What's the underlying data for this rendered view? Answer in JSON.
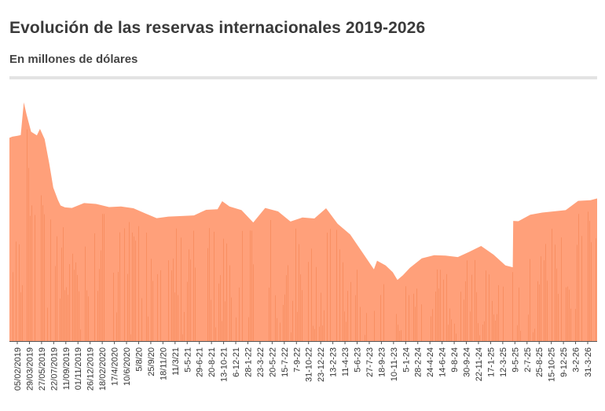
{
  "header": {
    "title": "Evolución de las reservas internacionales 2019-2026",
    "subtitle": "En millones de dólares"
  },
  "colors": {
    "area": "#ffa07a",
    "bar_dark": "#f07a45",
    "axis": "#555555",
    "tick_text": "#333333",
    "rule": "#e3e3e3"
  },
  "chart_data": {
    "type": "area",
    "title": "Evolución de las reservas internacionales 2019-2026",
    "subtitle": "En millones de dólares",
    "xlabel": "",
    "ylabel": "",
    "grid": false,
    "legend": "none",
    "x_range": [
      "2019-01-23",
      "2026-04-30"
    ],
    "tick_labels": [
      "05/02/2019",
      "29/03/2019",
      "27/05/2019",
      "22/07/2019",
      "11/09/2019",
      "01/11/2019",
      "26/12/2019",
      "18/02/2020",
      "17/4/2020",
      "10/6/2020",
      "5/8/20",
      "25/9/20",
      "18/11/20",
      "11/3/21",
      "5-5-21",
      "29-6-21",
      "20-8-21",
      "13-10-21",
      "6-12-21",
      "28-1-22",
      "23-3-22",
      "20-5-22",
      "15-7-22",
      "7-9-22",
      "31-10-22",
      "23-12-22",
      "13-2-23",
      "11-4-23",
      "5-6-23",
      "27-7-23",
      "18-9-23",
      "10-11-23",
      "5-1-24",
      "28-2-24",
      "24-4-24",
      "14-6-24",
      "9-8-24",
      "30-9-24",
      "22-11-24",
      "17-1-25",
      "12-3-25",
      "9-5-25",
      "2-7-25",
      "25-8-25",
      "15-10-25",
      "9-12-25",
      "3-2-26",
      "31-3-26"
    ],
    "x": [
      "2019-01-23",
      "2019-02-05",
      "2019-03-01",
      "2019-03-15",
      "2019-03-29",
      "2019-04-10",
      "2019-05-01",
      "2019-05-27",
      "2019-06-10",
      "2019-07-01",
      "2019-07-22",
      "2019-08-09",
      "2019-08-30",
      "2019-09-11",
      "2019-10-01",
      "2019-11-01",
      "2019-12-26",
      "2020-02-18",
      "2020-04-17",
      "2020-06-10",
      "2020-08-05",
      "2020-09-25",
      "2020-11-18",
      "2021-01-10",
      "2021-03-11",
      "2021-05-05",
      "2021-06-29",
      "2021-08-20",
      "2021-09-10",
      "2021-10-13",
      "2021-12-06",
      "2022-01-28",
      "2022-03-23",
      "2022-05-20",
      "2022-07-15",
      "2022-09-07",
      "2022-10-31",
      "2022-12-23",
      "2023-02-13",
      "2023-04-11",
      "2023-06-05",
      "2023-07-27",
      "2023-08-10",
      "2023-09-18",
      "2023-10-20",
      "2023-11-10",
      "2023-12-05",
      "2024-01-05",
      "2024-02-28",
      "2024-04-24",
      "2024-06-14",
      "2024-08-09",
      "2024-09-30",
      "2024-11-22",
      "2025-01-17",
      "2025-03-12",
      "2025-04-14",
      "2025-04-16",
      "2025-05-09",
      "2025-07-02",
      "2025-08-25",
      "2025-10-15",
      "2025-12-09",
      "2026-02-03",
      "2026-03-31",
      "2026-04-30"
    ],
    "values": [
      65800,
      66200,
      66500,
      66700,
      77300,
      73500,
      67800,
      66600,
      68700,
      65400,
      57500,
      49700,
      45700,
      43900,
      43300,
      43100,
      44700,
      44400,
      43400,
      43600,
      43000,
      41400,
      39800,
      40300,
      40500,
      40700,
      42500,
      42700,
      45300,
      43600,
      42400,
      38400,
      43100,
      42000,
      38700,
      40000,
      39700,
      43000,
      38000,
      34500,
      28700,
      23200,
      26000,
      24500,
      22300,
      19800,
      21300,
      23700,
      26800,
      27800,
      27700,
      27200,
      28900,
      30800,
      28000,
      24500,
      23900,
      38900,
      38800,
      40900,
      41600,
      42000,
      42400,
      45400,
      45600,
      46200
    ],
    "ylim": [
      0,
      85000
    ]
  }
}
